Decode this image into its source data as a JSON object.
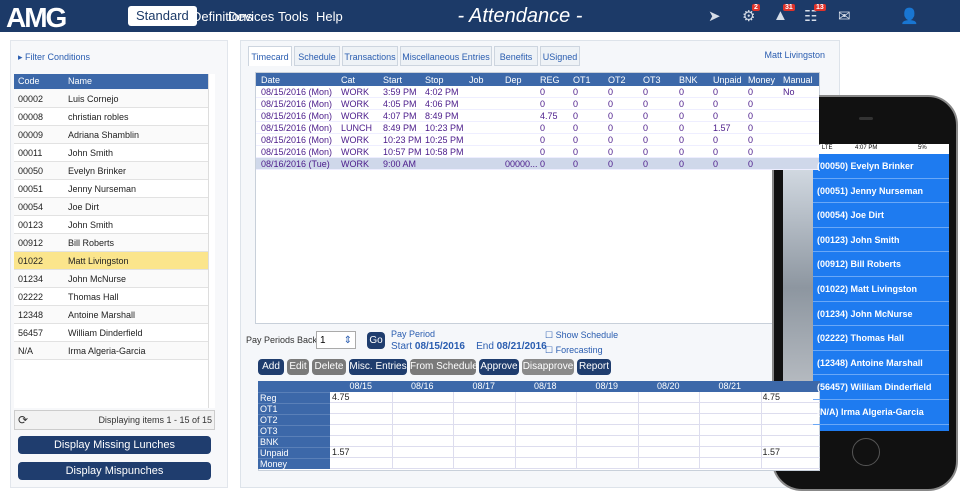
{
  "nav": {
    "logo": "AMG",
    "menu": [
      "Standard",
      "Definitions",
      "Devices",
      "Tools",
      "Help"
    ],
    "title": "- Attendance -",
    "badges": [
      "2",
      "31",
      "13"
    ]
  },
  "left": {
    "filter": "Filter Conditions",
    "headers": [
      "Code",
      "Name"
    ],
    "rows": [
      [
        "00002",
        "Luis Cornejo"
      ],
      [
        "00008",
        "christian robles"
      ],
      [
        "00009",
        "Adriana Shamblin"
      ],
      [
        "00011",
        "John Smith"
      ],
      [
        "00050",
        "Evelyn Brinker"
      ],
      [
        "00051",
        "Jenny Nurseman"
      ],
      [
        "00054",
        "Joe Dirt"
      ],
      [
        "00123",
        "John Smith"
      ],
      [
        "00912",
        "Bill Roberts"
      ],
      [
        "01022",
        "Matt Livingston"
      ],
      [
        "01234",
        "John McNurse"
      ],
      [
        "02222",
        "Thomas Hall"
      ],
      [
        "12348",
        "Antoine Marshall"
      ],
      [
        "56457",
        "William Dinderfield"
      ],
      [
        "N/A",
        "Irma Algeria-Garcia"
      ]
    ],
    "footer": "Displaying items 1 - 15 of 15",
    "buttons": [
      "Display Missing  Lunches",
      "Display Mispunches"
    ]
  },
  "main": {
    "tabs": [
      "Timecard",
      "Schedule",
      "Transactions",
      "Miscellaneous Entries",
      "Benefits",
      "USigned"
    ],
    "user": "Matt Livingston",
    "headers": [
      "Date",
      "Cat",
      "Start",
      "Stop",
      "Job",
      "Dep",
      "REG",
      "OT1",
      "OT2",
      "OT3",
      "BNK",
      "Unpaid",
      "Money",
      "Manual"
    ],
    "rows": [
      [
        "08/15/2016 (Mon)",
        "WORK",
        "3:59 PM",
        "4:02 PM",
        null,
        null,
        "0",
        "0",
        "0",
        "0",
        "0",
        "0",
        "0",
        "No"
      ],
      [
        "08/15/2016 (Mon)",
        "WORK",
        "4:05 PM",
        "4:06 PM",
        null,
        null,
        "0",
        "0",
        "0",
        "0",
        "0",
        "0",
        "0",
        null
      ],
      [
        "08/15/2016 (Mon)",
        "WORK",
        "4:07 PM",
        "8:49 PM",
        null,
        null,
        "4.75",
        "0",
        "0",
        "0",
        "0",
        "0",
        "0",
        null
      ],
      [
        "08/15/2016 (Mon)",
        "LUNCH",
        "8:49 PM",
        "10:23 PM",
        null,
        null,
        "0",
        "0",
        "0",
        "0",
        "0",
        "1.57",
        "0",
        null
      ],
      [
        "08/15/2016 (Mon)",
        "WORK",
        "10:23 PM",
        "10:25 PM",
        null,
        null,
        "0",
        "0",
        "0",
        "0",
        "0",
        "0",
        "0",
        null
      ],
      [
        "08/15/2016 (Mon)",
        "WORK",
        "10:57 PM",
        "10:58 PM",
        null,
        null,
        "0",
        "0",
        "0",
        "0",
        "0",
        "0",
        "0",
        null
      ],
      [
        "08/16/2016 (Tue)",
        "WORK",
        "9:00 AM",
        null,
        null,
        "00000...",
        "0",
        "0",
        "0",
        "0",
        "0",
        "0",
        "0",
        null
      ]
    ],
    "period": {
      "back_label": "Pay Periods Back",
      "back_value": "1",
      "go": "Go",
      "label": "Pay Period",
      "start_label": "Start",
      "start": "08/15/2016",
      "end_label": "End",
      "end": "08/21/2016",
      "show_schedule": "Show Schedule",
      "forecasting": "Forecasting"
    },
    "actions": [
      "Add",
      "Edit",
      "Delete",
      "Misc. Entries",
      "From Schedule",
      "Approve",
      "Disapprove",
      "Report"
    ],
    "summary": {
      "columns": [
        "08/15",
        "08/16",
        "08/17",
        "08/18",
        "08/19",
        "08/20",
        "08/21"
      ],
      "rows": [
        {
          "label": "Reg",
          "cells": [
            "4.75",
            null,
            null,
            null,
            null,
            null,
            null,
            "4.75"
          ]
        },
        {
          "label": "OT1",
          "cells": [
            null,
            null,
            null,
            null,
            null,
            null,
            null,
            null
          ]
        },
        {
          "label": "OT2",
          "cells": [
            null,
            null,
            null,
            null,
            null,
            null,
            null,
            null
          ]
        },
        {
          "label": "OT3",
          "cells": [
            null,
            null,
            null,
            null,
            null,
            null,
            null,
            null
          ]
        },
        {
          "label": "BNK",
          "cells": [
            null,
            null,
            null,
            null,
            null,
            null,
            null,
            null
          ]
        },
        {
          "label": "Unpaid",
          "cells": [
            "1.57",
            null,
            null,
            null,
            null,
            null,
            null,
            "1.57"
          ]
        },
        {
          "label": "Money",
          "cells": [
            null,
            null,
            null,
            null,
            null,
            null,
            null,
            null
          ]
        }
      ]
    }
  },
  "phone": {
    "carrier": "●●○○○ AT&T  LTE",
    "time": "4:07 PM",
    "battery": "5%",
    "items": [
      "(00050) Evelyn Brinker",
      "(00051) Jenny  Nurseman",
      "(00054) Joe Dirt",
      "(00123) John Smith",
      "(00912) Bill Roberts",
      "(01022) Matt Livingston",
      "(01234) John McNurse",
      "(02222) Thomas Hall",
      "(12348) Antoine Marshall",
      "(56457) William Dinderfield",
      "(N/A) Irma Algeria-Garcia"
    ]
  }
}
